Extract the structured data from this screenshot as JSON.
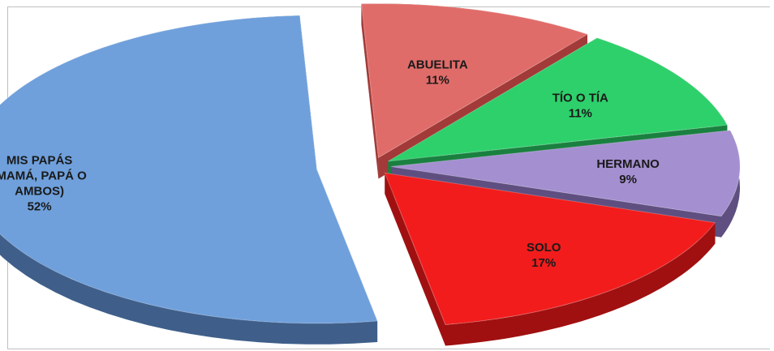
{
  "chart_data": {
    "type": "pie",
    "title": "",
    "slices": [
      {
        "lines": [
          "MIS PAPÁS",
          "(MAMÁ, PAPÁ O",
          "AMBOS)",
          "52%"
        ],
        "value": 52,
        "color": "#6fa0dc",
        "side": "#3f5f8a"
      },
      {
        "lines": [
          "ABUELITA",
          "11%"
        ],
        "value": 11,
        "color": "#e06c69",
        "side": "#a13a38"
      },
      {
        "lines": [
          "TÍO O TÍA",
          "11%"
        ],
        "value": 11,
        "color": "#2ed06b",
        "side": "#1a8040"
      },
      {
        "lines": [
          "HERMANO",
          "9%"
        ],
        "value": 9,
        "color": "#a48fd0",
        "side": "#5e4f80"
      },
      {
        "lines": [
          "SOLO",
          "17%"
        ],
        "value": 17,
        "color": "#f21c1c",
        "side": "#a01010"
      }
    ]
  }
}
